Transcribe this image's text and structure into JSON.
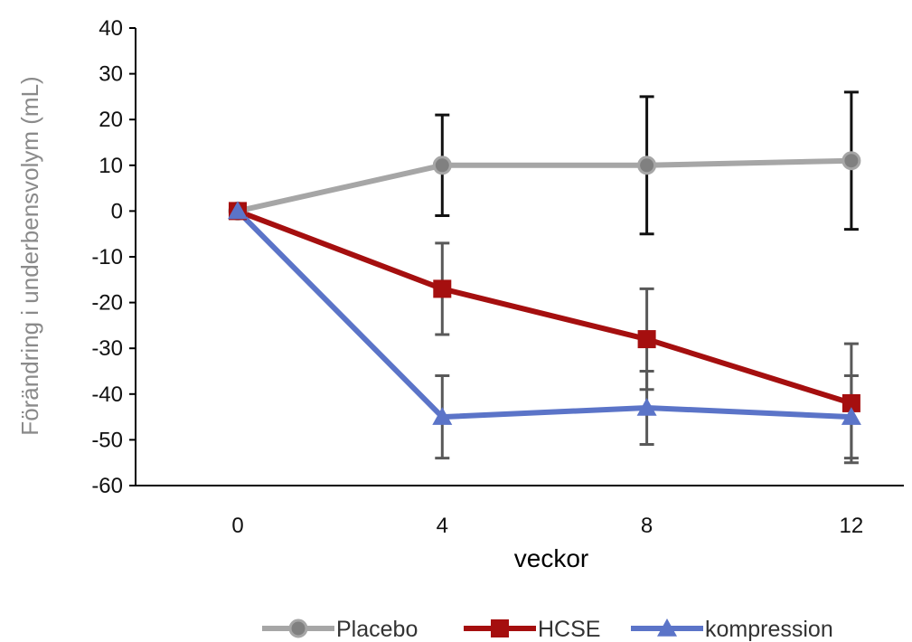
{
  "chart_data": {
    "type": "line",
    "xlabel": "veckor",
    "ylabel": "Förändring i underbensvolym  (mL)",
    "x": [
      0,
      4,
      8,
      12
    ],
    "x_tick_labels": [
      "0",
      "4",
      "8",
      "12"
    ],
    "ylim": [
      -60,
      40
    ],
    "y_ticks": [
      40,
      30,
      20,
      10,
      0,
      -10,
      -20,
      -30,
      -40,
      -50,
      -60
    ],
    "y_tick_labels": [
      "40",
      "30",
      "20",
      "10",
      "0",
      "-10",
      "-20",
      "-30",
      "-40",
      "-50",
      "-60"
    ],
    "grid": false,
    "legend_position": "bottom",
    "series": [
      {
        "name": "Placebo",
        "color": "#a6a6a6",
        "marker": "circle",
        "values": [
          0,
          10,
          10,
          11
        ],
        "error_low": [
          null,
          -1,
          -5,
          -4
        ],
        "error_high": [
          null,
          21,
          25,
          26
        ],
        "error_color": "#111111"
      },
      {
        "name": "HCSE",
        "color": "#a50f0f",
        "marker": "square",
        "values": [
          0,
          -17,
          -28,
          -42
        ],
        "error_low": [
          null,
          -27,
          -39,
          -55
        ],
        "error_high": [
          null,
          -7,
          -17,
          -29
        ],
        "error_color": "#595959"
      },
      {
        "name": "kompression",
        "color": "#5b74c8",
        "marker": "triangle",
        "values": [
          0,
          -45,
          -43,
          -45
        ],
        "error_low": [
          null,
          -54,
          -51,
          -54
        ],
        "error_high": [
          null,
          -36,
          -35,
          -36
        ],
        "error_color": "#595959"
      }
    ]
  }
}
